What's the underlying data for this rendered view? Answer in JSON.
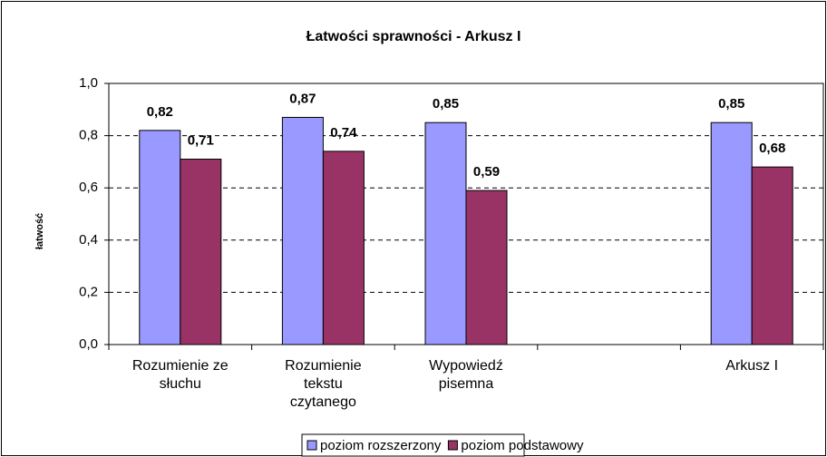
{
  "chart_data": {
    "type": "bar",
    "title": "Łatwości sprawności - Arkusz I",
    "y_label": "łatwość",
    "categories": [
      "Rozumienie ze słuchu",
      "Rozumienie tekstu czytanego",
      "Wypowiedź pisemna",
      null,
      "Arkusz I"
    ],
    "series": [
      {
        "name": "poziom rozszerzony",
        "color": "#9999ff",
        "values": [
          0.82,
          0.87,
          0.85,
          null,
          0.85
        ],
        "value_labels": [
          "0,82",
          "0,87",
          "0,85",
          null,
          "0,85"
        ]
      },
      {
        "name": "poziom podstawowy",
        "color": "#993366",
        "values": [
          0.71,
          0.74,
          0.59,
          null,
          0.68
        ],
        "value_labels": [
          "0,71",
          "0,74",
          "0,59",
          null,
          "0,68"
        ]
      }
    ],
    "ylim": [
      0,
      1
    ],
    "yticks": [
      {
        "value": 0,
        "label": "0,0"
      },
      {
        "value": 0.2,
        "label": "0,2"
      },
      {
        "value": 0.4,
        "label": "0,4"
      },
      {
        "value": 0.6,
        "label": "0,6"
      },
      {
        "value": 0.8,
        "label": "0,8"
      },
      {
        "value": 1,
        "label": "1,0"
      }
    ],
    "grid": true,
    "legend": "bottom"
  }
}
